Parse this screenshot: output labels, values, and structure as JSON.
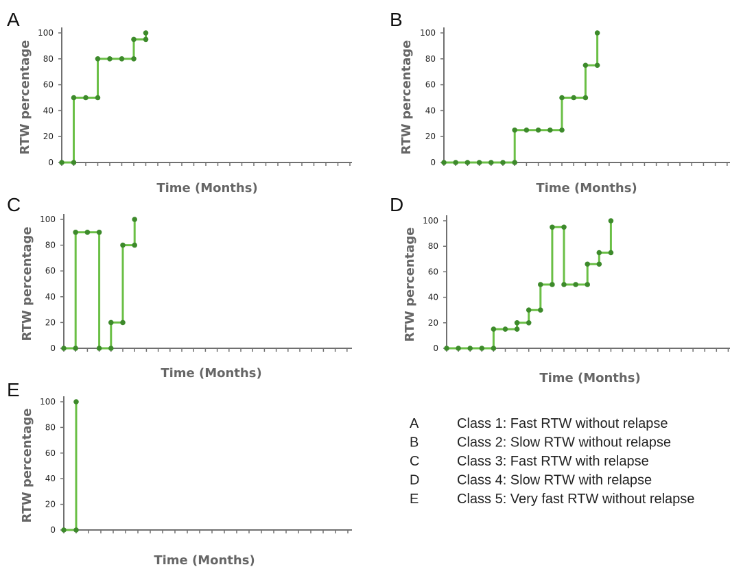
{
  "colors": {
    "line": "#6abf45",
    "marker": "#3d8a2b",
    "axis": "#707070"
  },
  "chart_data": [
    {
      "id": "A",
      "type": "line",
      "step": true,
      "title": "",
      "xlabel": "Time (Months)",
      "ylabel": "RTW percentage",
      "ylim": [
        0,
        100
      ],
      "yticks": [
        0,
        20,
        40,
        60,
        80,
        100
      ],
      "segments": [
        [
          [
            0,
            0
          ],
          [
            1,
            0
          ]
        ],
        [
          [
            1,
            50
          ],
          [
            2,
            50
          ],
          [
            3,
            50
          ]
        ],
        [
          [
            3,
            80
          ],
          [
            4,
            80
          ],
          [
            5,
            80
          ],
          [
            6,
            80
          ]
        ],
        [
          [
            6,
            95
          ],
          [
            7,
            95
          ]
        ],
        [
          [
            7,
            100
          ]
        ]
      ]
    },
    {
      "id": "B",
      "type": "line",
      "step": true,
      "title": "",
      "xlabel": "Time (Months)",
      "ylabel": "RTW percentage",
      "ylim": [
        0,
        100
      ],
      "yticks": [
        0,
        20,
        40,
        60,
        80,
        100
      ],
      "segments": [
        [
          [
            0,
            0
          ],
          [
            1,
            0
          ],
          [
            2,
            0
          ],
          [
            3,
            0
          ],
          [
            4,
            0
          ],
          [
            5,
            0
          ],
          [
            6,
            0
          ]
        ],
        [
          [
            6,
            25
          ],
          [
            7,
            25
          ],
          [
            8,
            25
          ],
          [
            9,
            25
          ],
          [
            10,
            25
          ]
        ],
        [
          [
            10,
            50
          ],
          [
            11,
            50
          ],
          [
            12,
            50
          ]
        ],
        [
          [
            12,
            75
          ],
          [
            13,
            75
          ]
        ],
        [
          [
            13,
            100
          ]
        ]
      ]
    },
    {
      "id": "C",
      "type": "line",
      "step": true,
      "title": "",
      "xlabel": "Time (Months)",
      "ylabel": "RTW percentage",
      "ylim": [
        0,
        100
      ],
      "yticks": [
        0,
        20,
        40,
        60,
        80,
        100
      ],
      "segments": [
        [
          [
            0,
            0
          ],
          [
            1,
            0
          ]
        ],
        [
          [
            1,
            90
          ],
          [
            2,
            90
          ],
          [
            3,
            90
          ]
        ],
        [
          [
            3,
            0
          ],
          [
            4,
            0
          ]
        ],
        [
          [
            4,
            20
          ],
          [
            5,
            20
          ]
        ],
        [
          [
            5,
            80
          ],
          [
            6,
            80
          ]
        ],
        [
          [
            6,
            100
          ]
        ]
      ]
    },
    {
      "id": "D",
      "type": "line",
      "step": true,
      "title": "",
      "xlabel": "Time (Months)",
      "ylabel": "RTW percentage",
      "ylim": [
        0,
        100
      ],
      "yticks": [
        0,
        20,
        40,
        60,
        80,
        100
      ],
      "segments": [
        [
          [
            0,
            0
          ],
          [
            1,
            0
          ],
          [
            2,
            0
          ],
          [
            3,
            0
          ],
          [
            4,
            0
          ]
        ],
        [
          [
            4,
            15
          ],
          [
            5,
            15
          ],
          [
            6,
            15
          ]
        ],
        [
          [
            6,
            20
          ],
          [
            7,
            20
          ]
        ],
        [
          [
            7,
            30
          ],
          [
            8,
            30
          ]
        ],
        [
          [
            8,
            50
          ],
          [
            9,
            50
          ]
        ],
        [
          [
            9,
            95
          ],
          [
            10,
            95
          ]
        ],
        [
          [
            10,
            50
          ],
          [
            11,
            50
          ],
          [
            12,
            50
          ]
        ],
        [
          [
            12,
            66
          ],
          [
            13,
            66
          ]
        ],
        [
          [
            13,
            75
          ],
          [
            14,
            75
          ]
        ],
        [
          [
            14,
            100
          ]
        ]
      ]
    },
    {
      "id": "E",
      "type": "line",
      "step": true,
      "title": "",
      "xlabel": "Time (Months)",
      "ylabel": "RTW percentage",
      "ylim": [
        0,
        100
      ],
      "yticks": [
        0,
        20,
        40,
        60,
        80,
        100
      ],
      "segments": [
        [
          [
            0,
            0
          ],
          [
            1,
            0
          ]
        ],
        [
          [
            1,
            100
          ]
        ]
      ]
    }
  ],
  "legend": [
    {
      "key": "A",
      "label": "Class 1: Fast RTW without relapse"
    },
    {
      "key": "B",
      "label": "Class 2: Slow RTW without relapse"
    },
    {
      "key": "C",
      "label": "Class 3: Fast RTW with relapse"
    },
    {
      "key": "D",
      "label": "Class 4: Slow RTW with relapse"
    },
    {
      "key": "E",
      "label": "Class 5: Very fast RTW without relapse"
    }
  ]
}
